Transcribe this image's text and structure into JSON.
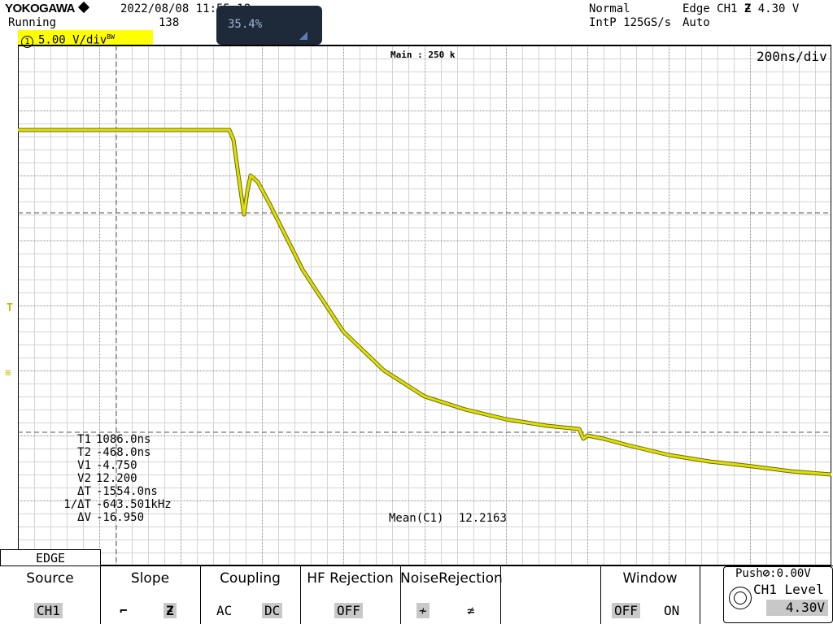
{
  "header": {
    "brand": "YOKOGAWA",
    "datetime": "2022/08/08 11:55:18",
    "status": "Running",
    "count": "138",
    "acq_mode": "Normal",
    "sample_rate": "IntP 125GS/s",
    "trigger": "Edge CH1",
    "trigger_level": "4.30 V",
    "trigger_mode": "Auto"
  },
  "channel": {
    "number": "1",
    "scale": "5.00 V/div",
    "bw_mark": "BW"
  },
  "popup": {
    "value": "35.4%"
  },
  "screen": {
    "main_label": "Main : 250 k",
    "timebase": "200ns/div"
  },
  "cursors": [
    {
      "label": "T1",
      "value": "1086.0ns"
    },
    {
      "label": "T2",
      "value": "-468.0ns"
    },
    {
      "label": "V1",
      "value": "-4.750"
    },
    {
      "label": "V2",
      "value": "12.200"
    },
    {
      "label": "ΔT",
      "value": "-1554.0ns"
    },
    {
      "label": "1/ΔT",
      "value": "-643.501kHz"
    },
    {
      "label": "ΔV",
      "value": "-16.950"
    }
  ],
  "measure": {
    "label": "Mean(C1)",
    "value": "12.2163"
  },
  "menu": {
    "tab": "EDGE",
    "source": {
      "title": "Source",
      "value": "CH1"
    },
    "slope": {
      "title": "Slope",
      "rise": "⌐",
      "fall": "Ƶ"
    },
    "coupling": {
      "title": "Coupling",
      "ac": "AC",
      "dc": "DC"
    },
    "hf_rejection": {
      "title": "HF Rejection",
      "value": "OFF"
    },
    "noise_rejection": {
      "title": "NoiseRejection",
      "opt1": "≁",
      "opt2": "≄"
    },
    "window": {
      "title": "Window",
      "off": "OFF",
      "on": "ON"
    },
    "level": {
      "push": "Push",
      "push_value": ":0.00V",
      "title": "CH1 Level",
      "value": "4.30V"
    }
  },
  "colors": {
    "trace": "#e0e000",
    "trace_dark": "#6a6a10",
    "grid": "#b8b8b8",
    "ch1": "#ffff00"
  },
  "chart_data": {
    "type": "line",
    "title": "",
    "xlabel": "",
    "ylabel": "",
    "x_unit": "div",
    "y_unit": "div",
    "xlim": [
      0,
      10
    ],
    "ylim": [
      -4,
      4
    ],
    "grid": true,
    "series": [
      {
        "x": [
          0,
          2.6,
          2.65,
          2.7,
          2.78,
          2.82,
          2.86,
          2.95,
          3.1,
          3.5,
          4.0,
          4.5,
          5.0,
          5.5,
          6.0,
          6.5,
          6.9,
          6.95,
          7.0,
          7.2,
          7.5,
          8.0,
          8.5,
          9.0,
          9.5,
          10.0
        ],
        "y": [
          2.7,
          2.7,
          2.55,
          2.1,
          1.4,
          1.75,
          2.0,
          1.9,
          1.55,
          0.55,
          -0.4,
          -1.0,
          -1.4,
          -1.6,
          -1.75,
          -1.85,
          -1.9,
          -2.05,
          -2.0,
          -2.05,
          -2.15,
          -2.3,
          -2.4,
          -2.47,
          -2.55,
          -2.6
        ]
      }
    ]
  }
}
